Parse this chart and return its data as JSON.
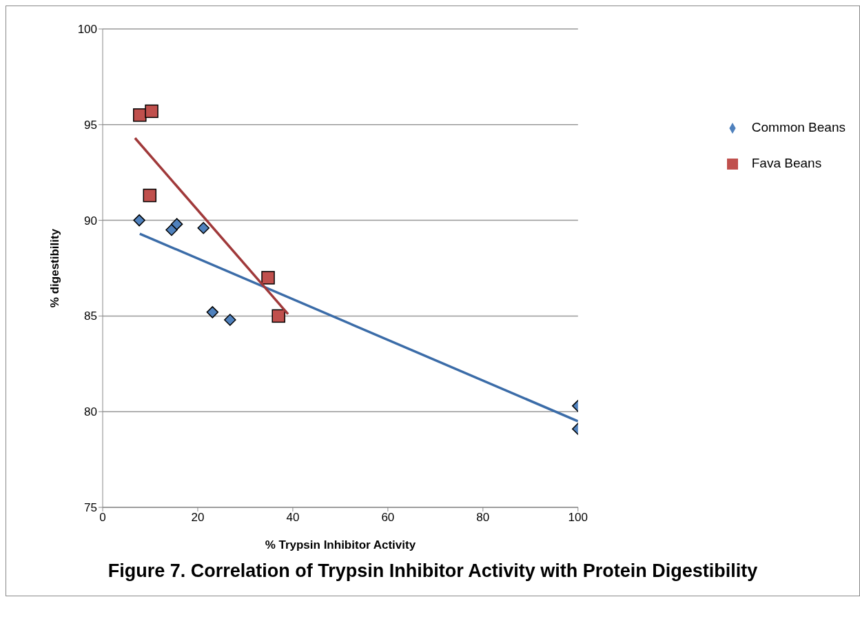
{
  "chart_data": {
    "type": "scatter",
    "title": "Figure 7. Correlation of Trypsin Inhibitor Activity with Protein Digestibility",
    "xlabel": "% Trypsin Inhibitor Activity",
    "ylabel": "% digestibility",
    "xlim": [
      0,
      100
    ],
    "xticks": [
      0,
      20,
      40,
      60,
      80,
      100
    ],
    "ylim": [
      75,
      100
    ],
    "yticks": [
      75,
      80,
      85,
      90,
      95,
      100
    ],
    "grid": "y",
    "legend": "right",
    "series": [
      {
        "name": "Common Beans",
        "color": "#4f81bd",
        "marker": "diamond",
        "x": [
          7.7,
          14.5,
          15.6,
          21.2,
          23.1,
          26.8,
          100,
          100
        ],
        "values": [
          90.0,
          89.5,
          89.8,
          89.6,
          85.2,
          84.8,
          80.3,
          79.1
        ]
      },
      {
        "name": "Fava Beans",
        "color": "#c0504d",
        "marker": "square",
        "x": [
          7.8,
          10.3,
          9.9,
          34.8,
          37.0
        ],
        "values": [
          95.5,
          95.7,
          91.3,
          87.0,
          85.0
        ]
      },
      {
        "type": "line",
        "color": "#3b6ca8",
        "marker": "none",
        "x": [
          7.8,
          100
        ],
        "values": [
          89.3,
          79.5
        ]
      },
      {
        "type": "line",
        "color": "#a0393a",
        "marker": "none",
        "x": [
          6.8,
          39.0
        ],
        "values": [
          94.3,
          85.1
        ]
      }
    ]
  }
}
